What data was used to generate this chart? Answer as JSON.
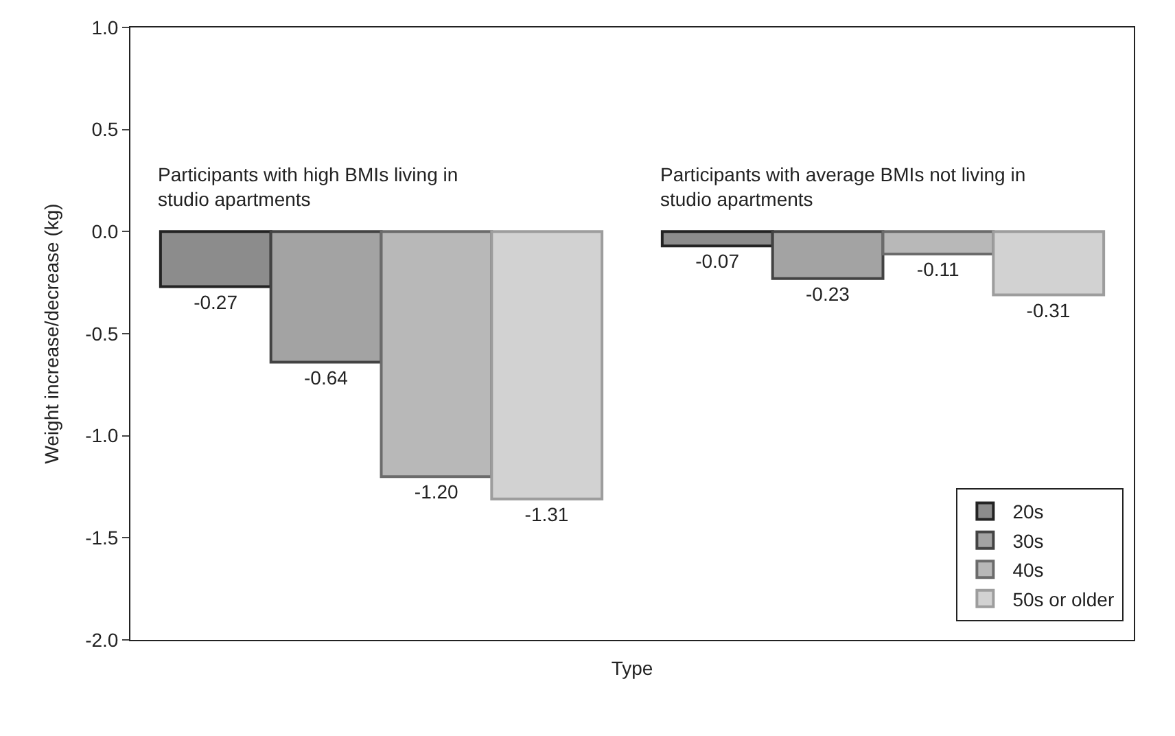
{
  "chart_data": {
    "type": "bar",
    "xlabel": "Type",
    "ylabel": "Weight increase/decrease (kg)",
    "categories": [
      "Participants with high BMIs living in studio apartments",
      "Participants with average BMIs not living in studio apartments"
    ],
    "series": [
      {
        "name": "20s",
        "color": "#8c8c8c",
        "values": [
          -0.27,
          -0.07
        ],
        "value_labels": [
          "-0.27",
          "-0.07"
        ]
      },
      {
        "name": "30s",
        "color": "#a3a3a3",
        "values": [
          -0.64,
          -0.23
        ],
        "value_labels": [
          "-0.64",
          "-0.23"
        ]
      },
      {
        "name": "40s",
        "color": "#b8b8b8",
        "values": [
          -1.2,
          -0.11
        ],
        "value_labels": [
          "-1.20",
          "-0.11"
        ]
      },
      {
        "name": "50s or older",
        "color": "#d2d2d2",
        "values": [
          -1.31,
          -0.31
        ],
        "value_labels": [
          "-1.31",
          "-0.31"
        ]
      }
    ],
    "ylim": [
      -2.0,
      1.0
    ],
    "yticks": [
      {
        "value": -2.0,
        "label": "-2.0"
      },
      {
        "value": -1.5,
        "label": "-1.5"
      },
      {
        "value": -1.0,
        "label": "-1.0"
      },
      {
        "value": -0.5,
        "label": "-0.5"
      },
      {
        "value": 0.0,
        "label": "0.0"
      },
      {
        "value": 0.5,
        "label": "0.5"
      },
      {
        "value": 1.0,
        "label": "1.0"
      }
    ],
    "legend": "bottom right",
    "tick_labels": "y"
  }
}
